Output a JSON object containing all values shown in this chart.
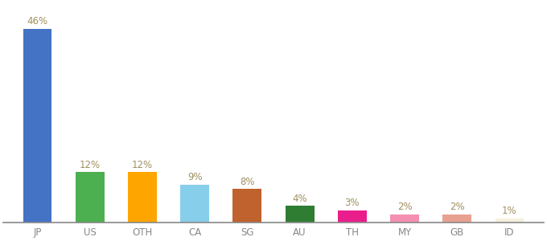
{
  "categories": [
    "JP",
    "US",
    "OTH",
    "CA",
    "SG",
    "AU",
    "TH",
    "MY",
    "GB",
    "ID"
  ],
  "values": [
    46,
    12,
    12,
    9,
    8,
    4,
    3,
    2,
    2,
    1
  ],
  "bar_colors": [
    "#4472c4",
    "#4caf50",
    "#ffa500",
    "#87ceeb",
    "#c0622d",
    "#2e7d32",
    "#e91e8c",
    "#f48fb1",
    "#e8a090",
    "#f5f0dc"
  ],
  "ylim": [
    0,
    52
  ],
  "label_color": "#a09060",
  "label_fontsize": 8.5,
  "tick_fontsize": 8.5,
  "tick_color": "#888888",
  "background_color": "#ffffff",
  "bar_width": 0.55
}
